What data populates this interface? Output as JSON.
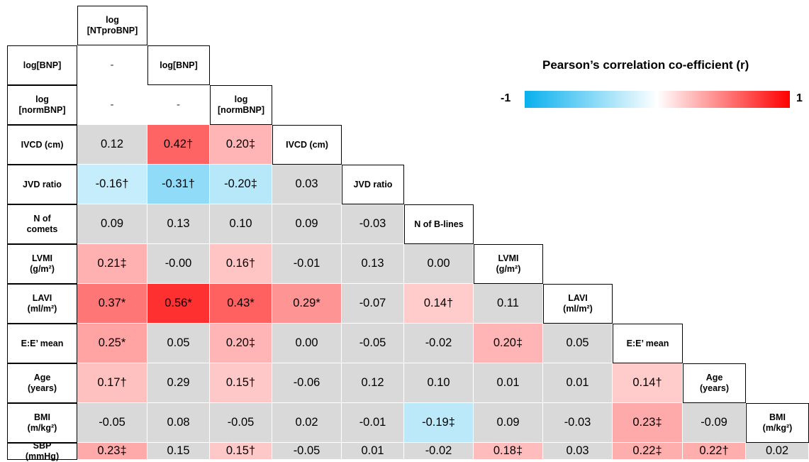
{
  "chart_data": {
    "type": "heatmap",
    "variables": [
      "log\n[NTproBNP]",
      "log[BNP]",
      "log\n[normBNP]",
      "IVCD (cm)",
      "JVD ratio",
      "N of B-lines",
      "LVMI\n(g/m²)",
      "LAVI\n(ml/m²)",
      "E:E’ mean",
      "Age\n(years)",
      "BMI\n(m/kg²)"
    ],
    "row_labels": [
      "log[BNP]",
      "log\n[normBNP]",
      "IVCD (cm)",
      "JVD ratio",
      "N of\ncomets",
      "LVMI\n(g/m²)",
      "LAVI\n(ml/m²)",
      "E:E’ mean",
      "Age\n(years)",
      "BMI\n(m/kg²)",
      "SBP\n(mmHg)"
    ],
    "cells": [
      [
        {
          "v": null,
          "t": "-"
        }
      ],
      [
        {
          "v": null,
          "t": "-"
        },
        {
          "v": null,
          "t": "-"
        }
      ],
      [
        {
          "v": 0.12,
          "t": "0.12"
        },
        {
          "v": 0.42,
          "t": "0.42†"
        },
        {
          "v": 0.2,
          "t": "0.20‡"
        }
      ],
      [
        {
          "v": -0.16,
          "t": "-0.16†"
        },
        {
          "v": -0.31,
          "t": "-0.31†"
        },
        {
          "v": -0.2,
          "t": "-0.20‡"
        },
        {
          "v": 0.03,
          "t": "0.03"
        }
      ],
      [
        {
          "v": 0.09,
          "t": "0.09"
        },
        {
          "v": 0.13,
          "t": "0.13"
        },
        {
          "v": 0.1,
          "t": "0.10"
        },
        {
          "v": 0.09,
          "t": "0.09"
        },
        {
          "v": -0.03,
          "t": "-0.03"
        }
      ],
      [
        {
          "v": 0.21,
          "t": "0.21‡"
        },
        {
          "v": 0.0,
          "t": "-0.00"
        },
        {
          "v": 0.16,
          "t": "0.16†"
        },
        {
          "v": -0.01,
          "t": "-0.01"
        },
        {
          "v": 0.13,
          "t": "0.13"
        },
        {
          "v": 0.0,
          "t": "0.00"
        }
      ],
      [
        {
          "v": 0.37,
          "t": "0.37*"
        },
        {
          "v": 0.56,
          "t": "0.56*"
        },
        {
          "v": 0.43,
          "t": "0.43*"
        },
        {
          "v": 0.29,
          "t": "0.29*"
        },
        {
          "v": -0.07,
          "t": "-0.07"
        },
        {
          "v": 0.14,
          "t": "0.14†"
        },
        {
          "v": 0.11,
          "t": "0.11"
        }
      ],
      [
        {
          "v": 0.25,
          "t": "0.25*"
        },
        {
          "v": 0.05,
          "t": "0.05"
        },
        {
          "v": 0.2,
          "t": "0.20‡"
        },
        {
          "v": 0.0,
          "t": "0.00"
        },
        {
          "v": -0.05,
          "t": "-0.05"
        },
        {
          "v": -0.02,
          "t": "-0.02"
        },
        {
          "v": 0.2,
          "t": "0.20‡"
        },
        {
          "v": 0.05,
          "t": "0.05"
        }
      ],
      [
        {
          "v": 0.17,
          "t": "0.17†"
        },
        {
          "v": 0.29,
          "t": "0.29"
        },
        {
          "v": 0.15,
          "t": "0.15†"
        },
        {
          "v": -0.06,
          "t": "-0.06"
        },
        {
          "v": 0.12,
          "t": "0.12"
        },
        {
          "v": 0.1,
          "t": "0.10"
        },
        {
          "v": 0.01,
          "t": "0.01"
        },
        {
          "v": 0.01,
          "t": "0.01"
        },
        {
          "v": 0.14,
          "t": "0.14†"
        }
      ],
      [
        {
          "v": -0.05,
          "t": "-0.05"
        },
        {
          "v": 0.08,
          "t": "0.08"
        },
        {
          "v": -0.05,
          "t": "-0.05"
        },
        {
          "v": 0.02,
          "t": "0.02"
        },
        {
          "v": -0.01,
          "t": "-0.01"
        },
        {
          "v": -0.19,
          "t": "-0.19‡"
        },
        {
          "v": 0.09,
          "t": "0.09"
        },
        {
          "v": -0.03,
          "t": "-0.03"
        },
        {
          "v": 0.23,
          "t": "0.23‡"
        },
        {
          "v": -0.09,
          "t": "-0.09"
        }
      ],
      [
        {
          "v": 0.23,
          "t": "0.23‡"
        },
        {
          "v": 0.15,
          "t": "0.15"
        },
        {
          "v": 0.15,
          "t": "0.15†"
        },
        {
          "v": -0.05,
          "t": "-0.05"
        },
        {
          "v": 0.01,
          "t": "0.01"
        },
        {
          "v": -0.02,
          "t": "-0.02"
        },
        {
          "v": 0.18,
          "t": "0.18‡"
        },
        {
          "v": 0.03,
          "t": "0.03"
        },
        {
          "v": 0.22,
          "t": "0.22‡"
        },
        {
          "v": 0.22,
          "t": "0.22†"
        },
        {
          "v": 0.02,
          "t": "0.02"
        }
      ]
    ],
    "colorscale": {
      "min": -1,
      "max": 1,
      "min_color": "#08b0ee",
      "mid_color": "#ffffff",
      "max_color": "#ff0000",
      "non_significant_color": "#d9d9d9"
    }
  },
  "legend": {
    "title": "Pearson’s correlation co-efficient (r)",
    "min_label": "-1",
    "max_label": "1"
  }
}
